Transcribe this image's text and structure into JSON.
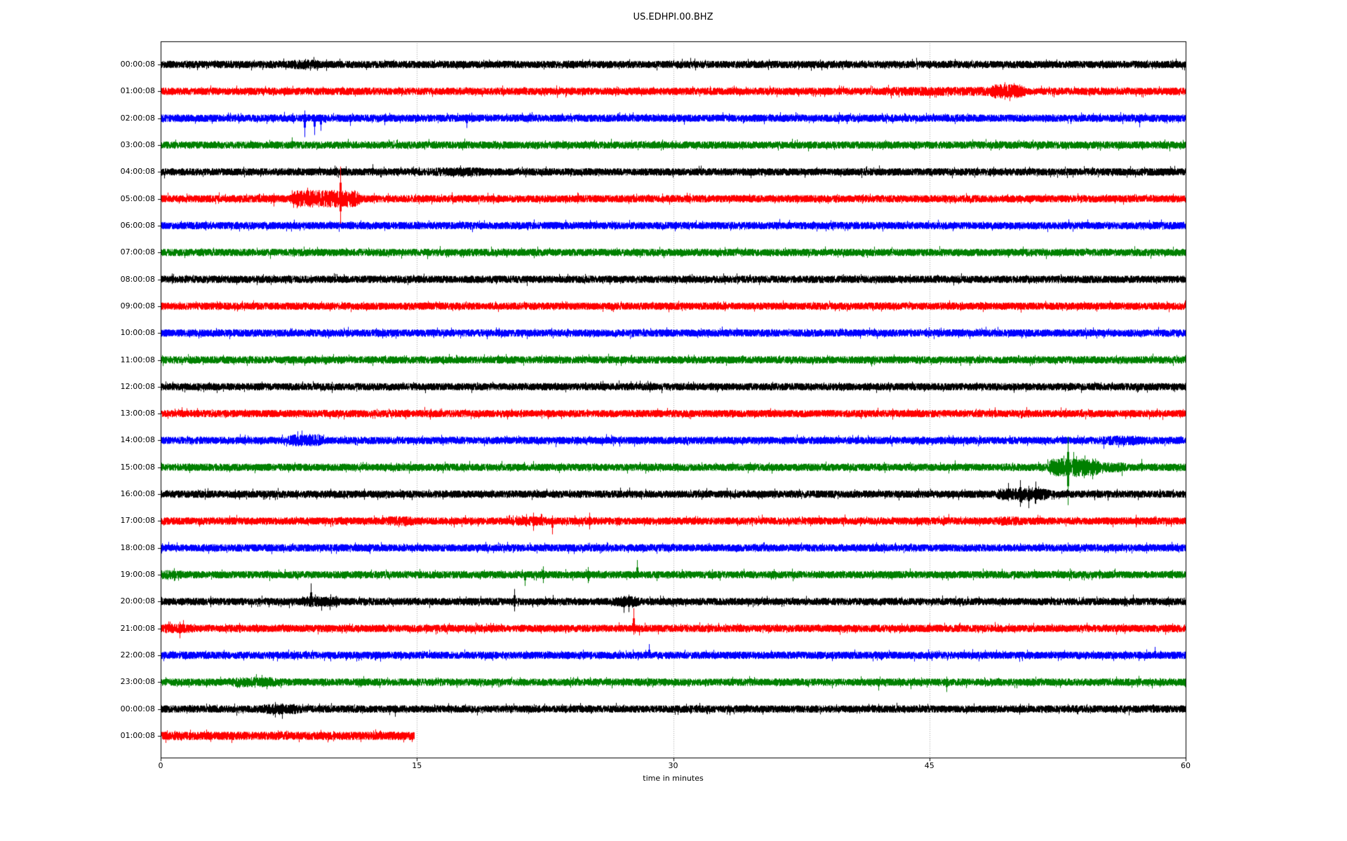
{
  "title": "US.EDHPI.00.BHZ",
  "chart_data": {
    "type": "line",
    "subtype": "seismogram-dayplot",
    "title": "US.EDHPI.00.BHZ",
    "xlabel": "time in minutes",
    "x_ticks": [
      "0",
      "15",
      "30",
      "45",
      "60"
    ],
    "x_tick_minutes": [
      0,
      15,
      30,
      45,
      60
    ],
    "x_range": [
      0,
      60
    ],
    "minutes_per_row": 60,
    "gridline_minutes": [
      15,
      30,
      45
    ],
    "grid_color": "#a8a8a8",
    "axis_color": "#000000",
    "background_color": "#ffffff",
    "trace_color_cycle": [
      "#000000",
      "#ff0000",
      "#0000ff",
      "#008000"
    ],
    "legend": "none",
    "rows": [
      {
        "label": "00:00:08",
        "color": "#000000",
        "duration_min": 60,
        "base_amp": 4.8,
        "bursts": [
          {
            "from": 7.9,
            "to": 9.0,
            "mult": 1.35
          }
        ],
        "spikes": [
          {
            "m": 8.45,
            "up": 8,
            "down": 8
          }
        ]
      },
      {
        "label": "01:00:08",
        "color": "#ff0000",
        "duration_min": 60,
        "base_amp": 4.8,
        "bursts": [
          {
            "from": 42.5,
            "to": 48.6,
            "mult": 1.25
          },
          {
            "from": 48.8,
            "to": 50.3,
            "mult": 2.0
          }
        ],
        "spikes": [
          {
            "m": 45.4,
            "up": 4,
            "down": 9
          },
          {
            "m": 49.4,
            "up": 13,
            "down": 12
          },
          {
            "m": 49.7,
            "up": 10,
            "down": 14
          }
        ]
      },
      {
        "label": "02:00:08",
        "color": "#0000ff",
        "duration_min": 60,
        "base_amp": 4.8,
        "bursts": [],
        "spikes": [
          {
            "m": 3.0,
            "up": 3,
            "down": 8
          },
          {
            "m": 8.4,
            "up": 11,
            "down": 27
          },
          {
            "m": 9.0,
            "up": 5,
            "down": 24
          },
          {
            "m": 9.35,
            "up": 5,
            "down": 18
          },
          {
            "m": 11.1,
            "up": 4,
            "down": 11
          },
          {
            "m": 13.1,
            "up": 4,
            "down": 10
          },
          {
            "m": 17.9,
            "up": 5,
            "down": 14
          },
          {
            "m": 18.2,
            "up": 8,
            "down": 6
          },
          {
            "m": 27.2,
            "up": 7,
            "down": 5
          },
          {
            "m": 57.3,
            "up": 6,
            "down": 13
          }
        ]
      },
      {
        "label": "03:00:08",
        "color": "#008000",
        "duration_min": 60,
        "base_amp": 4.8,
        "bursts": [],
        "spikes": [
          {
            "m": 7.7,
            "up": 11,
            "down": 4
          },
          {
            "m": 19.6,
            "up": 6,
            "down": 4
          }
        ]
      },
      {
        "label": "04:00:08",
        "color": "#000000",
        "duration_min": 60,
        "base_amp": 4.8,
        "bursts": [
          {
            "from": 16.2,
            "to": 18.6,
            "mult": 1.25
          }
        ],
        "spikes": [
          {
            "m": 10.2,
            "up": 9,
            "down": 4
          },
          {
            "m": 12.4,
            "up": 11,
            "down": 5
          },
          {
            "m": 17.7,
            "up": 5,
            "down": 8
          }
        ]
      },
      {
        "label": "05:00:08",
        "color": "#ff0000",
        "duration_min": 60,
        "base_amp": 4.8,
        "bursts": [
          {
            "from": 7.9,
            "to": 11.4,
            "mult": 2.5
          }
        ],
        "spikes": [
          {
            "m": 6.6,
            "up": 8,
            "down": 11
          },
          {
            "m": 10.5,
            "up": 46,
            "down": 36
          },
          {
            "m": 11.2,
            "up": 10,
            "down": 12
          },
          {
            "m": 13.3,
            "up": 8,
            "down": 6
          }
        ]
      },
      {
        "label": "06:00:08",
        "color": "#0000ff",
        "duration_min": 60,
        "base_amp": 4.8,
        "bursts": [],
        "spikes": []
      },
      {
        "label": "07:00:08",
        "color": "#008000",
        "duration_min": 60,
        "base_amp": 4.8,
        "bursts": [],
        "spikes": []
      },
      {
        "label": "08:00:08",
        "color": "#000000",
        "duration_min": 60,
        "base_amp": 4.8,
        "bursts": [],
        "spikes": [
          {
            "m": 8.8,
            "up": 6,
            "down": 5
          }
        ]
      },
      {
        "label": "09:00:08",
        "color": "#ff0000",
        "duration_min": 60,
        "base_amp": 4.8,
        "bursts": [],
        "spikes": []
      },
      {
        "label": "10:00:08",
        "color": "#0000ff",
        "duration_min": 60,
        "base_amp": 4.8,
        "bursts": [],
        "spikes": []
      },
      {
        "label": "11:00:08",
        "color": "#008000",
        "duration_min": 60,
        "base_amp": 4.8,
        "bursts": [],
        "spikes": [
          {
            "m": 5.2,
            "up": 6,
            "down": 4
          }
        ]
      },
      {
        "label": "12:00:08",
        "color": "#000000",
        "duration_min": 60,
        "base_amp": 4.8,
        "bursts": [],
        "spikes": []
      },
      {
        "label": "13:00:08",
        "color": "#ff0000",
        "duration_min": 60,
        "base_amp": 4.8,
        "bursts": [],
        "spikes": []
      },
      {
        "label": "14:00:08",
        "color": "#0000ff",
        "duration_min": 60,
        "base_amp": 4.8,
        "bursts": [
          {
            "from": 7.7,
            "to": 9.2,
            "mult": 1.7
          },
          {
            "from": 55.2,
            "to": 57.2,
            "mult": 1.35
          }
        ],
        "spikes": [
          {
            "m": 44.6,
            "up": 6,
            "down": 5
          }
        ]
      },
      {
        "label": "15:00:08",
        "color": "#008000",
        "duration_min": 60,
        "base_amp": 4.8,
        "bursts": [
          {
            "from": 52.2,
            "to": 54.7,
            "mult": 2.6
          },
          {
            "from": 54.7,
            "to": 56.2,
            "mult": 1.4
          }
        ],
        "spikes": [
          {
            "m": 42.4,
            "up": 5,
            "down": 8
          },
          {
            "m": 46.5,
            "up": 10,
            "down": 4
          },
          {
            "m": 53.1,
            "up": 44,
            "down": 54
          },
          {
            "m": 53.6,
            "up": 16,
            "down": 14
          },
          {
            "m": 54.1,
            "up": 17,
            "down": 8
          },
          {
            "m": 57.4,
            "up": 12,
            "down": 6
          }
        ]
      },
      {
        "label": "16:00:08",
        "color": "#000000",
        "duration_min": 60,
        "base_amp": 4.8,
        "bursts": [
          {
            "from": 49.2,
            "to": 51.7,
            "mult": 1.7
          }
        ],
        "spikes": [
          {
            "m": 11.9,
            "up": 8,
            "down": 8
          },
          {
            "m": 17.0,
            "up": 5,
            "down": 5
          },
          {
            "m": 35.2,
            "up": 4,
            "down": 7
          },
          {
            "m": 43.2,
            "up": 4,
            "down": 9
          },
          {
            "m": 49.6,
            "up": 16,
            "down": 10
          },
          {
            "m": 50.3,
            "up": 20,
            "down": 18
          },
          {
            "m": 50.8,
            "up": 12,
            "down": 20
          },
          {
            "m": 51.2,
            "up": 18,
            "down": 14
          }
        ]
      },
      {
        "label": "17:00:08",
        "color": "#ff0000",
        "duration_min": 60,
        "base_amp": 4.8,
        "bursts": [
          {
            "from": 13.4,
            "to": 14.6,
            "mult": 1.35
          },
          {
            "from": 20.9,
            "to": 22.3,
            "mult": 1.35
          },
          {
            "from": 49.2,
            "to": 50.2,
            "mult": 1.3
          }
        ],
        "spikes": [
          {
            "m": 17.0,
            "up": 6,
            "down": 7
          },
          {
            "m": 21.4,
            "up": 10,
            "down": 8
          },
          {
            "m": 21.8,
            "up": 12,
            "down": 14
          },
          {
            "m": 22.9,
            "up": 8,
            "down": 19
          },
          {
            "m": 25.1,
            "up": 12,
            "down": 12
          },
          {
            "m": 26.8,
            "up": 6,
            "down": 6
          },
          {
            "m": 46.1,
            "up": 10,
            "down": 4
          },
          {
            "m": 57.1,
            "up": 9,
            "down": 9
          }
        ]
      },
      {
        "label": "18:00:08",
        "color": "#0000ff",
        "duration_min": 60,
        "base_amp": 4.8,
        "bursts": [],
        "spikes": [
          {
            "m": 12.2,
            "up": 6,
            "down": 6
          },
          {
            "m": 25.0,
            "up": 7,
            "down": 4
          },
          {
            "m": 28.2,
            "up": 5,
            "down": 7
          },
          {
            "m": 34.8,
            "up": 6,
            "down": 6
          },
          {
            "m": 57.7,
            "up": 8,
            "down": 8
          }
        ]
      },
      {
        "label": "19:00:08",
        "color": "#008000",
        "duration_min": 60,
        "base_amp": 4.8,
        "bursts": [
          {
            "from": 0.0,
            "to": 0.9,
            "mult": 1.3
          }
        ],
        "spikes": [
          {
            "m": 0.8,
            "up": 4,
            "down": 9
          },
          {
            "m": 21.3,
            "up": 4,
            "down": 16
          },
          {
            "m": 22.4,
            "up": 12,
            "down": 12
          },
          {
            "m": 25.0,
            "up": 11,
            "down": 12
          },
          {
            "m": 27.9,
            "up": 21,
            "down": 5
          },
          {
            "m": 30.5,
            "up": 8,
            "down": 4
          }
        ]
      },
      {
        "label": "20:00:08",
        "color": "#000000",
        "duration_min": 60,
        "base_amp": 4.8,
        "bursts": [
          {
            "from": 8.6,
            "to": 10.2,
            "mult": 1.5
          },
          {
            "from": 26.8,
            "to": 27.8,
            "mult": 1.5
          }
        ],
        "spikes": [
          {
            "m": 2.9,
            "up": 8,
            "down": 8
          },
          {
            "m": 8.8,
            "up": 26,
            "down": 8
          },
          {
            "m": 9.4,
            "up": 6,
            "down": 13
          },
          {
            "m": 9.9,
            "up": 5,
            "down": 12
          },
          {
            "m": 20.7,
            "up": 18,
            "down": 14
          },
          {
            "m": 27.1,
            "up": 8,
            "down": 16
          },
          {
            "m": 27.4,
            "up": 10,
            "down": 15
          },
          {
            "m": 29.4,
            "up": 8,
            "down": 5
          },
          {
            "m": 56.9,
            "up": 10,
            "down": 4
          }
        ]
      },
      {
        "label": "21:00:08",
        "color": "#ff0000",
        "duration_min": 60,
        "base_amp": 4.8,
        "bursts": [
          {
            "from": 0.3,
            "to": 1.6,
            "mult": 1.3
          }
        ],
        "spikes": [
          {
            "m": 1.1,
            "up": 8,
            "down": 14
          },
          {
            "m": 4.6,
            "up": 8,
            "down": 6
          },
          {
            "m": 19.3,
            "up": 8,
            "down": 5
          },
          {
            "m": 27.7,
            "up": 29,
            "down": 9
          },
          {
            "m": 28.0,
            "up": 5,
            "down": 10
          },
          {
            "m": 45.0,
            "up": 8,
            "down": 4
          },
          {
            "m": 58.8,
            "up": 6,
            "down": 9
          }
        ]
      },
      {
        "label": "22:00:08",
        "color": "#0000ff",
        "duration_min": 60,
        "base_amp": 4.8,
        "bursts": [],
        "spikes": [
          {
            "m": 7.8,
            "up": 7,
            "down": 7
          },
          {
            "m": 28.6,
            "up": 16,
            "down": 4
          },
          {
            "m": 42.2,
            "up": 5,
            "down": 6
          },
          {
            "m": 58.2,
            "up": 12,
            "down": 5
          }
        ]
      },
      {
        "label": "23:00:08",
        "color": "#008000",
        "duration_min": 60,
        "base_amp": 4.8,
        "bursts": [
          {
            "from": 4.4,
            "to": 6.6,
            "mult": 1.4
          }
        ],
        "spikes": [
          {
            "m": 5.5,
            "up": 8,
            "down": 8
          },
          {
            "m": 36.0,
            "up": 5,
            "down": 6
          },
          {
            "m": 42.0,
            "up": 4,
            "down": 12
          },
          {
            "m": 43.9,
            "up": 3,
            "down": 10
          },
          {
            "m": 46.0,
            "up": 8,
            "down": 14
          }
        ]
      },
      {
        "label": "00:00:08",
        "color": "#000000",
        "duration_min": 60,
        "base_amp": 4.8,
        "bursts": [
          {
            "from": 6.2,
            "to": 7.9,
            "mult": 1.45
          }
        ],
        "spikes": [
          {
            "m": 6.7,
            "up": 10,
            "down": 12
          },
          {
            "m": 7.1,
            "up": 8,
            "down": 14
          },
          {
            "m": 9.3,
            "up": 8,
            "down": 6
          },
          {
            "m": 11.0,
            "up": 6,
            "down": 6
          },
          {
            "m": 13.7,
            "up": 6,
            "down": 11
          },
          {
            "m": 31.0,
            "up": 5,
            "down": 7
          }
        ]
      },
      {
        "label": "01:00:08",
        "color": "#ff0000",
        "duration_min": 14.83,
        "base_amp": 5.5,
        "bursts": [],
        "spikes": [
          {
            "m": 0.3,
            "up": 6,
            "down": 10
          }
        ]
      }
    ]
  }
}
